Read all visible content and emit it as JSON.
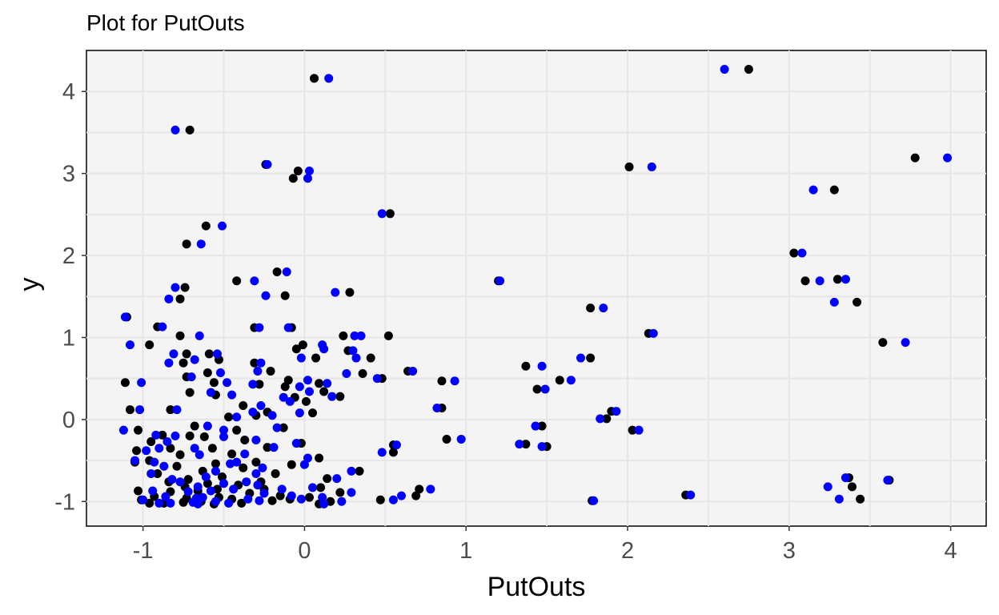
{
  "chart_data": {
    "type": "scatter",
    "title": "Plot for  PutOuts",
    "xlabel": "PutOuts",
    "ylabel": "y",
    "xlim": [
      -1.35,
      4.22
    ],
    "ylim": [
      -1.3,
      4.5
    ],
    "x_ticks": [
      -1,
      0,
      1,
      2,
      3,
      4
    ],
    "y_ticks": [
      -1,
      0,
      1,
      2,
      3,
      4
    ],
    "grid": true,
    "legend": "none",
    "series": [
      {
        "color": "#000000",
        "points": [
          [
            0.06,
            4.16
          ],
          [
            2.75,
            4.27
          ],
          [
            -0.71,
            3.53
          ],
          [
            3.78,
            3.19
          ],
          [
            -0.24,
            3.11
          ],
          [
            -0.04,
            3.03
          ],
          [
            -0.07,
            2.94
          ],
          [
            2.01,
            3.08
          ],
          [
            3.28,
            2.8
          ],
          [
            0.53,
            2.51
          ],
          [
            -0.61,
            2.36
          ],
          [
            -0.73,
            2.14
          ],
          [
            3.03,
            2.03
          ],
          [
            -0.17,
            1.8
          ],
          [
            -0.42,
            1.69
          ],
          [
            3.1,
            1.69
          ],
          [
            3.3,
            1.71
          ],
          [
            1.2,
            1.69
          ],
          [
            -0.74,
            1.61
          ],
          [
            0.28,
            1.55
          ],
          [
            -0.12,
            1.51
          ],
          [
            -0.77,
            1.47
          ],
          [
            3.42,
            1.43
          ],
          [
            1.77,
            1.36
          ],
          [
            -1.1,
            1.25
          ],
          [
            -0.91,
            1.13
          ],
          [
            -0.31,
            1.12
          ],
          [
            -0.08,
            1.12
          ],
          [
            2.13,
            1.05
          ],
          [
            0.52,
            1.02
          ],
          [
            0.24,
            1.02
          ],
          [
            -0.77,
            1.02
          ],
          [
            3.58,
            0.94
          ],
          [
            -0.01,
            0.91
          ],
          [
            -0.96,
            0.91
          ],
          [
            -0.05,
            0.86
          ],
          [
            0.27,
            0.84
          ],
          [
            -0.73,
            0.8
          ],
          [
            -0.59,
            0.8
          ],
          [
            1.77,
            0.75
          ],
          [
            0.07,
            0.75
          ],
          [
            0.41,
            0.75
          ],
          [
            -0.53,
            0.73
          ],
          [
            -0.31,
            0.69
          ],
          [
            -0.75,
            0.69
          ],
          [
            1.37,
            0.65
          ],
          [
            -0.21,
            0.59
          ],
          [
            0.64,
            0.59
          ],
          [
            -0.6,
            0.57
          ],
          [
            0.36,
            0.56
          ],
          [
            -0.73,
            0.52
          ],
          [
            0.48,
            0.5
          ],
          [
            1.58,
            0.48
          ],
          [
            -0.1,
            0.48
          ],
          [
            0.85,
            0.47
          ],
          [
            -0.56,
            0.45
          ],
          [
            -1.11,
            0.45
          ],
          [
            0.09,
            0.44
          ],
          [
            -0.28,
            0.43
          ],
          [
            -0.12,
            0.4
          ],
          [
            1.44,
            0.37
          ],
          [
            0.12,
            0.34
          ],
          [
            -0.71,
            0.33
          ],
          [
            -0.55,
            0.3
          ],
          [
            0.22,
            0.28
          ],
          [
            -0.06,
            0.27
          ],
          [
            0.01,
            0.22
          ],
          [
            -0.38,
            0.17
          ],
          [
            0.85,
            0.14
          ],
          [
            -1.08,
            0.12
          ],
          [
            -0.83,
            0.12
          ],
          [
            -0.23,
            0.09
          ],
          [
            1.9,
            0.1
          ],
          [
            0.05,
            0.08
          ],
          [
            -0.3,
            0.05
          ],
          [
            -0.47,
            0.03
          ],
          [
            1.87,
            0.01
          ],
          [
            -0.68,
            -0.08
          ],
          [
            1.47,
            -0.08
          ],
          [
            -0.13,
            -0.1
          ],
          [
            -0.42,
            -0.13
          ],
          [
            -1.03,
            -0.13
          ],
          [
            2.03,
            -0.13
          ],
          [
            -0.71,
            -0.2
          ],
          [
            -0.88,
            -0.19
          ],
          [
            0.88,
            -0.24
          ],
          [
            -0.62,
            -0.21
          ],
          [
            -0.37,
            -0.25
          ],
          [
            -0.95,
            -0.27
          ],
          [
            1.37,
            -0.3
          ],
          [
            0.55,
            -0.31
          ],
          [
            -0.02,
            -0.29
          ],
          [
            1.5,
            -0.33
          ],
          [
            -0.23,
            -0.34
          ],
          [
            -0.83,
            -0.35
          ],
          [
            -0.57,
            -0.35
          ],
          [
            -1.04,
            -0.38
          ],
          [
            0.55,
            -0.4
          ],
          [
            -0.45,
            -0.42
          ],
          [
            -0.77,
            -0.43
          ],
          [
            0.09,
            -0.47
          ],
          [
            -0.96,
            -0.5
          ],
          [
            -0.3,
            -0.52
          ],
          [
            -1.05,
            -0.52
          ],
          [
            -0.55,
            -0.54
          ],
          [
            -0.08,
            -0.55
          ],
          [
            -0.79,
            -0.57
          ],
          [
            -0.38,
            -0.59
          ],
          [
            0.34,
            -0.63
          ],
          [
            -0.63,
            -0.63
          ],
          [
            -0.91,
            -0.66
          ],
          [
            -0.18,
            -0.66
          ],
          [
            -0.51,
            -0.7
          ],
          [
            0.14,
            -0.72
          ],
          [
            -0.72,
            -0.73
          ],
          [
            -0.84,
            -0.76
          ],
          [
            -0.27,
            -0.76
          ],
          [
            -0.6,
            -0.78
          ],
          [
            3.37,
            -0.71
          ],
          [
            3.62,
            -0.74
          ],
          [
            -0.41,
            -0.8
          ],
          [
            -0.74,
            -0.82
          ],
          [
            0.1,
            -0.83
          ],
          [
            -0.54,
            -0.85
          ],
          [
            3.39,
            -0.82
          ],
          [
            -1.03,
            -0.87
          ],
          [
            -0.25,
            -0.85
          ],
          [
            -0.66,
            -0.87
          ],
          [
            0.71,
            -0.85
          ],
          [
            -0.83,
            -0.88
          ],
          [
            -0.34,
            -0.9
          ],
          [
            0.22,
            -0.89
          ],
          [
            0.69,
            -0.93
          ],
          [
            2.36,
            -0.92
          ],
          [
            -0.15,
            -0.93
          ],
          [
            -0.53,
            -0.95
          ],
          [
            -0.93,
            -0.94
          ],
          [
            -0.73,
            -0.96
          ],
          [
            0.03,
            -0.95
          ],
          [
            -0.45,
            -0.97
          ],
          [
            -1.01,
            -0.98
          ],
          [
            0.47,
            -0.98
          ],
          [
            3.44,
            -0.97
          ],
          [
            1.78,
            -0.99
          ],
          [
            -0.64,
            -1.0
          ],
          [
            -0.2,
            -0.99
          ],
          [
            0.16,
            -1.0
          ],
          [
            -0.87,
            -1.02
          ],
          [
            -0.39,
            -1.02
          ],
          [
            0.09,
            -1.03
          ],
          [
            -0.96,
            -1.02
          ],
          [
            -0.56,
            -1.03
          ],
          [
            -0.75,
            -1.01
          ],
          [
            -0.09,
            -0.97
          ]
        ]
      },
      {
        "color": "#0000ff",
        "points": [
          [
            0.15,
            4.16
          ],
          [
            2.6,
            4.27
          ],
          [
            -0.8,
            3.53
          ],
          [
            3.98,
            3.19
          ],
          [
            -0.23,
            3.11
          ],
          [
            0.03,
            3.03
          ],
          [
            0.02,
            2.94
          ],
          [
            2.15,
            3.08
          ],
          [
            3.15,
            2.8
          ],
          [
            0.48,
            2.51
          ],
          [
            -0.51,
            2.36
          ],
          [
            -0.64,
            2.14
          ],
          [
            3.08,
            2.03
          ],
          [
            -0.11,
            1.8
          ],
          [
            -0.31,
            1.69
          ],
          [
            3.19,
            1.69
          ],
          [
            3.35,
            1.71
          ],
          [
            1.21,
            1.69
          ],
          [
            -0.8,
            1.61
          ],
          [
            0.19,
            1.55
          ],
          [
            -0.24,
            1.51
          ],
          [
            -0.84,
            1.47
          ],
          [
            3.28,
            1.43
          ],
          [
            1.85,
            1.36
          ],
          [
            -1.11,
            1.25
          ],
          [
            -0.88,
            1.13
          ],
          [
            -0.28,
            1.12
          ],
          [
            -0.1,
            1.12
          ],
          [
            2.16,
            1.05
          ],
          [
            0.35,
            1.02
          ],
          [
            0.31,
            1.02
          ],
          [
            -0.65,
            1.02
          ],
          [
            3.72,
            0.94
          ],
          [
            0.11,
            0.91
          ],
          [
            -1.08,
            0.91
          ],
          [
            0.12,
            0.86
          ],
          [
            0.3,
            0.84
          ],
          [
            -0.81,
            0.8
          ],
          [
            -0.54,
            0.8
          ],
          [
            1.71,
            0.75
          ],
          [
            -0.02,
            0.75
          ],
          [
            0.32,
            0.75
          ],
          [
            -0.68,
            0.73
          ],
          [
            -0.27,
            0.69
          ],
          [
            -0.84,
            0.69
          ],
          [
            1.47,
            0.65
          ],
          [
            -0.29,
            0.59
          ],
          [
            0.67,
            0.59
          ],
          [
            -0.52,
            0.57
          ],
          [
            0.26,
            0.56
          ],
          [
            -0.7,
            0.52
          ],
          [
            0.45,
            0.5
          ],
          [
            1.65,
            0.48
          ],
          [
            0.02,
            0.48
          ],
          [
            0.93,
            0.47
          ],
          [
            -0.48,
            0.45
          ],
          [
            -1.01,
            0.45
          ],
          [
            0.14,
            0.44
          ],
          [
            -0.32,
            0.43
          ],
          [
            -0.03,
            0.4
          ],
          [
            1.49,
            0.37
          ],
          [
            0.03,
            0.34
          ],
          [
            -0.58,
            0.33
          ],
          [
            -0.45,
            0.3
          ],
          [
            0.17,
            0.28
          ],
          [
            -0.13,
            0.27
          ],
          [
            -0.09,
            0.22
          ],
          [
            -0.27,
            0.17
          ],
          [
            0.82,
            0.14
          ],
          [
            -1.02,
            0.12
          ],
          [
            -0.79,
            0.12
          ],
          [
            -0.32,
            0.09
          ],
          [
            1.93,
            0.1
          ],
          [
            -0.03,
            0.08
          ],
          [
            -0.2,
            0.05
          ],
          [
            -0.42,
            0.03
          ],
          [
            1.83,
            0.01
          ],
          [
            -0.6,
            -0.08
          ],
          [
            1.43,
            -0.08
          ],
          [
            -0.17,
            -0.1
          ],
          [
            -0.5,
            -0.13
          ],
          [
            -1.12,
            -0.13
          ],
          [
            2.07,
            -0.13
          ],
          [
            -0.8,
            -0.2
          ],
          [
            -0.92,
            -0.19
          ],
          [
            0.97,
            -0.24
          ],
          [
            -0.5,
            -0.21
          ],
          [
            -0.3,
            -0.25
          ],
          [
            -0.85,
            -0.27
          ],
          [
            1.33,
            -0.3
          ],
          [
            0.57,
            -0.31
          ],
          [
            -0.05,
            -0.29
          ],
          [
            1.47,
            -0.33
          ],
          [
            -0.19,
            -0.34
          ],
          [
            -0.9,
            -0.35
          ],
          [
            -0.68,
            -0.35
          ],
          [
            -0.98,
            -0.38
          ],
          [
            0.48,
            -0.4
          ],
          [
            -0.37,
            -0.42
          ],
          [
            -0.65,
            -0.43
          ],
          [
            0.02,
            -0.47
          ],
          [
            -1.05,
            -0.5
          ],
          [
            -0.42,
            -0.52
          ],
          [
            -0.93,
            -0.52
          ],
          [
            -0.46,
            -0.54
          ],
          [
            0.0,
            -0.55
          ],
          [
            -0.87,
            -0.57
          ],
          [
            -0.26,
            -0.59
          ],
          [
            0.29,
            -0.63
          ],
          [
            -0.55,
            -0.63
          ],
          [
            -0.95,
            -0.66
          ],
          [
            -0.3,
            -0.66
          ],
          [
            -0.61,
            -0.7
          ],
          [
            0.2,
            -0.72
          ],
          [
            -0.82,
            -0.73
          ],
          [
            -0.77,
            -0.76
          ],
          [
            -0.36,
            -0.76
          ],
          [
            -0.5,
            -0.78
          ],
          [
            3.35,
            -0.71
          ],
          [
            3.61,
            -0.74
          ],
          [
            -0.29,
            -0.8
          ],
          [
            -0.66,
            -0.82
          ],
          [
            0.05,
            -0.83
          ],
          [
            -0.44,
            -0.85
          ],
          [
            3.24,
            -0.82
          ],
          [
            -0.94,
            -0.87
          ],
          [
            -0.14,
            -0.85
          ],
          [
            -0.58,
            -0.87
          ],
          [
            0.78,
            -0.85
          ],
          [
            -0.72,
            -0.88
          ],
          [
            -0.25,
            -0.9
          ],
          [
            0.29,
            -0.89
          ],
          [
            0.6,
            -0.93
          ],
          [
            2.39,
            -0.92
          ],
          [
            -0.08,
            -0.93
          ],
          [
            -0.63,
            -0.95
          ],
          [
            -0.86,
            -0.94
          ],
          [
            -0.67,
            -0.96
          ],
          [
            0.11,
            -0.95
          ],
          [
            -0.35,
            -0.97
          ],
          [
            -1.0,
            -0.98
          ],
          [
            0.55,
            -0.98
          ],
          [
            3.31,
            -0.97
          ],
          [
            1.79,
            -0.99
          ],
          [
            -0.55,
            -1.0
          ],
          [
            -0.28,
            -0.99
          ],
          [
            0.23,
            -1.0
          ],
          [
            -0.83,
            -1.02
          ],
          [
            -0.47,
            -1.02
          ],
          [
            0.12,
            -1.03
          ],
          [
            -0.9,
            -1.02
          ],
          [
            -0.66,
            -1.03
          ],
          [
            -0.69,
            -1.01
          ],
          [
            -0.02,
            -0.97
          ]
        ]
      }
    ]
  }
}
